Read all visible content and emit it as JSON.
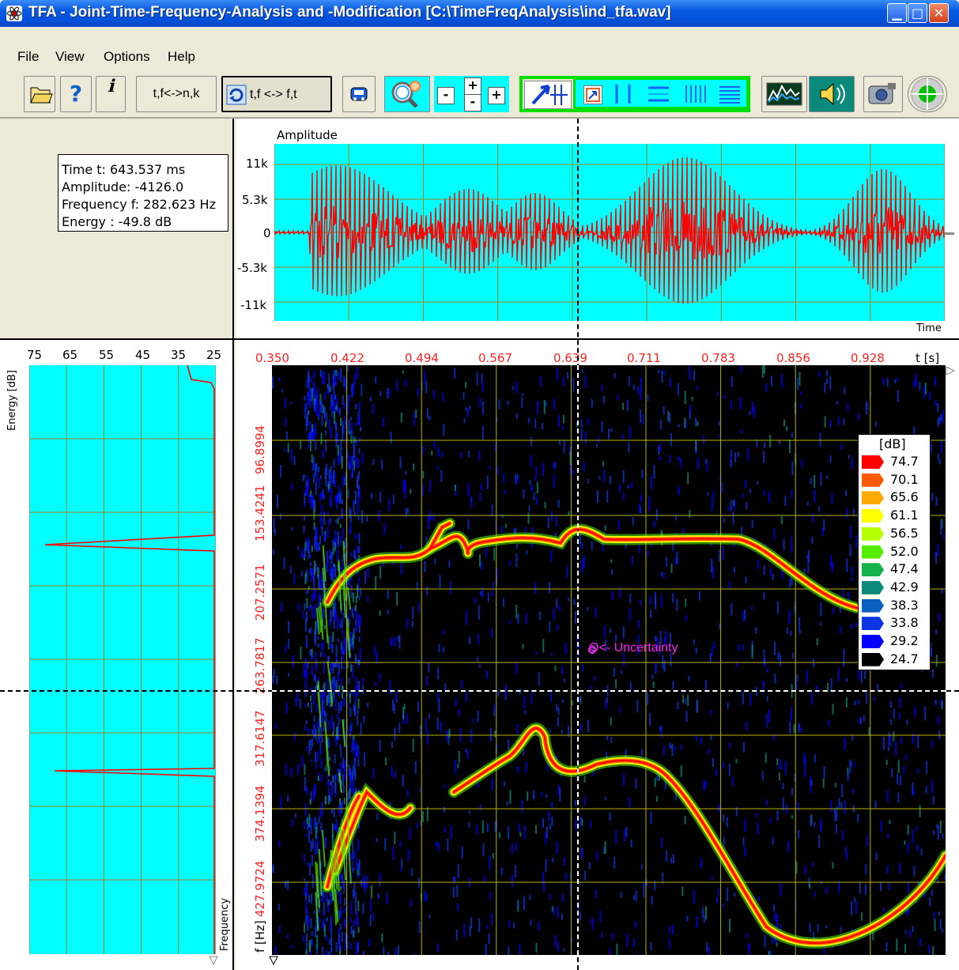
{
  "window": {
    "title": "TFA - Joint-Time-Frequency-Analysis and -Modification [C:\\TimeFreqAnalysis\\ind_tfa.wav]"
  },
  "menu": [
    {
      "label": "File"
    },
    {
      "label": "View"
    },
    {
      "label": "Options"
    },
    {
      "label": "Help"
    }
  ],
  "toolbar": {
    "tf_nk_label": "t,f<->n,k",
    "tf_ft_label": "t,f <-> f,t",
    "help_label": "?"
  },
  "info": {
    "time": "Time t: 643.537 ms",
    "amplitude": "Amplitude: -4126.0",
    "frequency": "Frequency f: 282.623 Hz",
    "energy": "Energy : -49.8 dB"
  },
  "waveform": {
    "title": "Amplitude",
    "xlabel": "Time",
    "y_ticks": [
      "11k",
      "5.3k",
      "0",
      "-5.3k",
      "-11k"
    ]
  },
  "energy_panel": {
    "ylabel": "Energy [dB]",
    "xlabel": "Frequency",
    "ticks": [
      "75",
      "65",
      "55",
      "45",
      "35",
      "25"
    ]
  },
  "spectrogram": {
    "xlabel": "t [s]",
    "ylabel": "f [Hz]",
    "x_ticks": [
      "0.350",
      "0.422",
      "0.494",
      "0.567",
      "0.639",
      "0.711",
      "0.783",
      "0.856",
      "0.928"
    ],
    "y_ticks": [
      "96.8994",
      "153.4241",
      "207.2571",
      "263.7817",
      "317.6147",
      "374.1394",
      "427.9724"
    ],
    "annotation": "O<- Uncertainty",
    "colors": {
      "background": "#000000",
      "grid": "#b7b400",
      "cursor": "#ffffff"
    }
  },
  "legend": {
    "title": "[dB]",
    "entries": [
      {
        "value": "74.7",
        "color": "#ff0000"
      },
      {
        "value": "70.1",
        "color": "#ff5a00"
      },
      {
        "value": "65.6",
        "color": "#ffaa00"
      },
      {
        "value": "61.1",
        "color": "#ffff00"
      },
      {
        "value": "56.5",
        "color": "#b6ff00"
      },
      {
        "value": "52.0",
        "color": "#55ee00"
      },
      {
        "value": "47.4",
        "color": "#14b248"
      },
      {
        "value": "42.9",
        "color": "#0b8a7a"
      },
      {
        "value": "38.3",
        "color": "#0a5fc0"
      },
      {
        "value": "33.8",
        "color": "#0a35e0"
      },
      {
        "value": "29.2",
        "color": "#0000ff"
      },
      {
        "value": "24.7",
        "color": "#000000"
      }
    ]
  },
  "colors": {
    "titlebar": "#0858e0",
    "plot_background": "#00ffff",
    "signal": "#ff0000",
    "selection_frame": "#00e000"
  }
}
